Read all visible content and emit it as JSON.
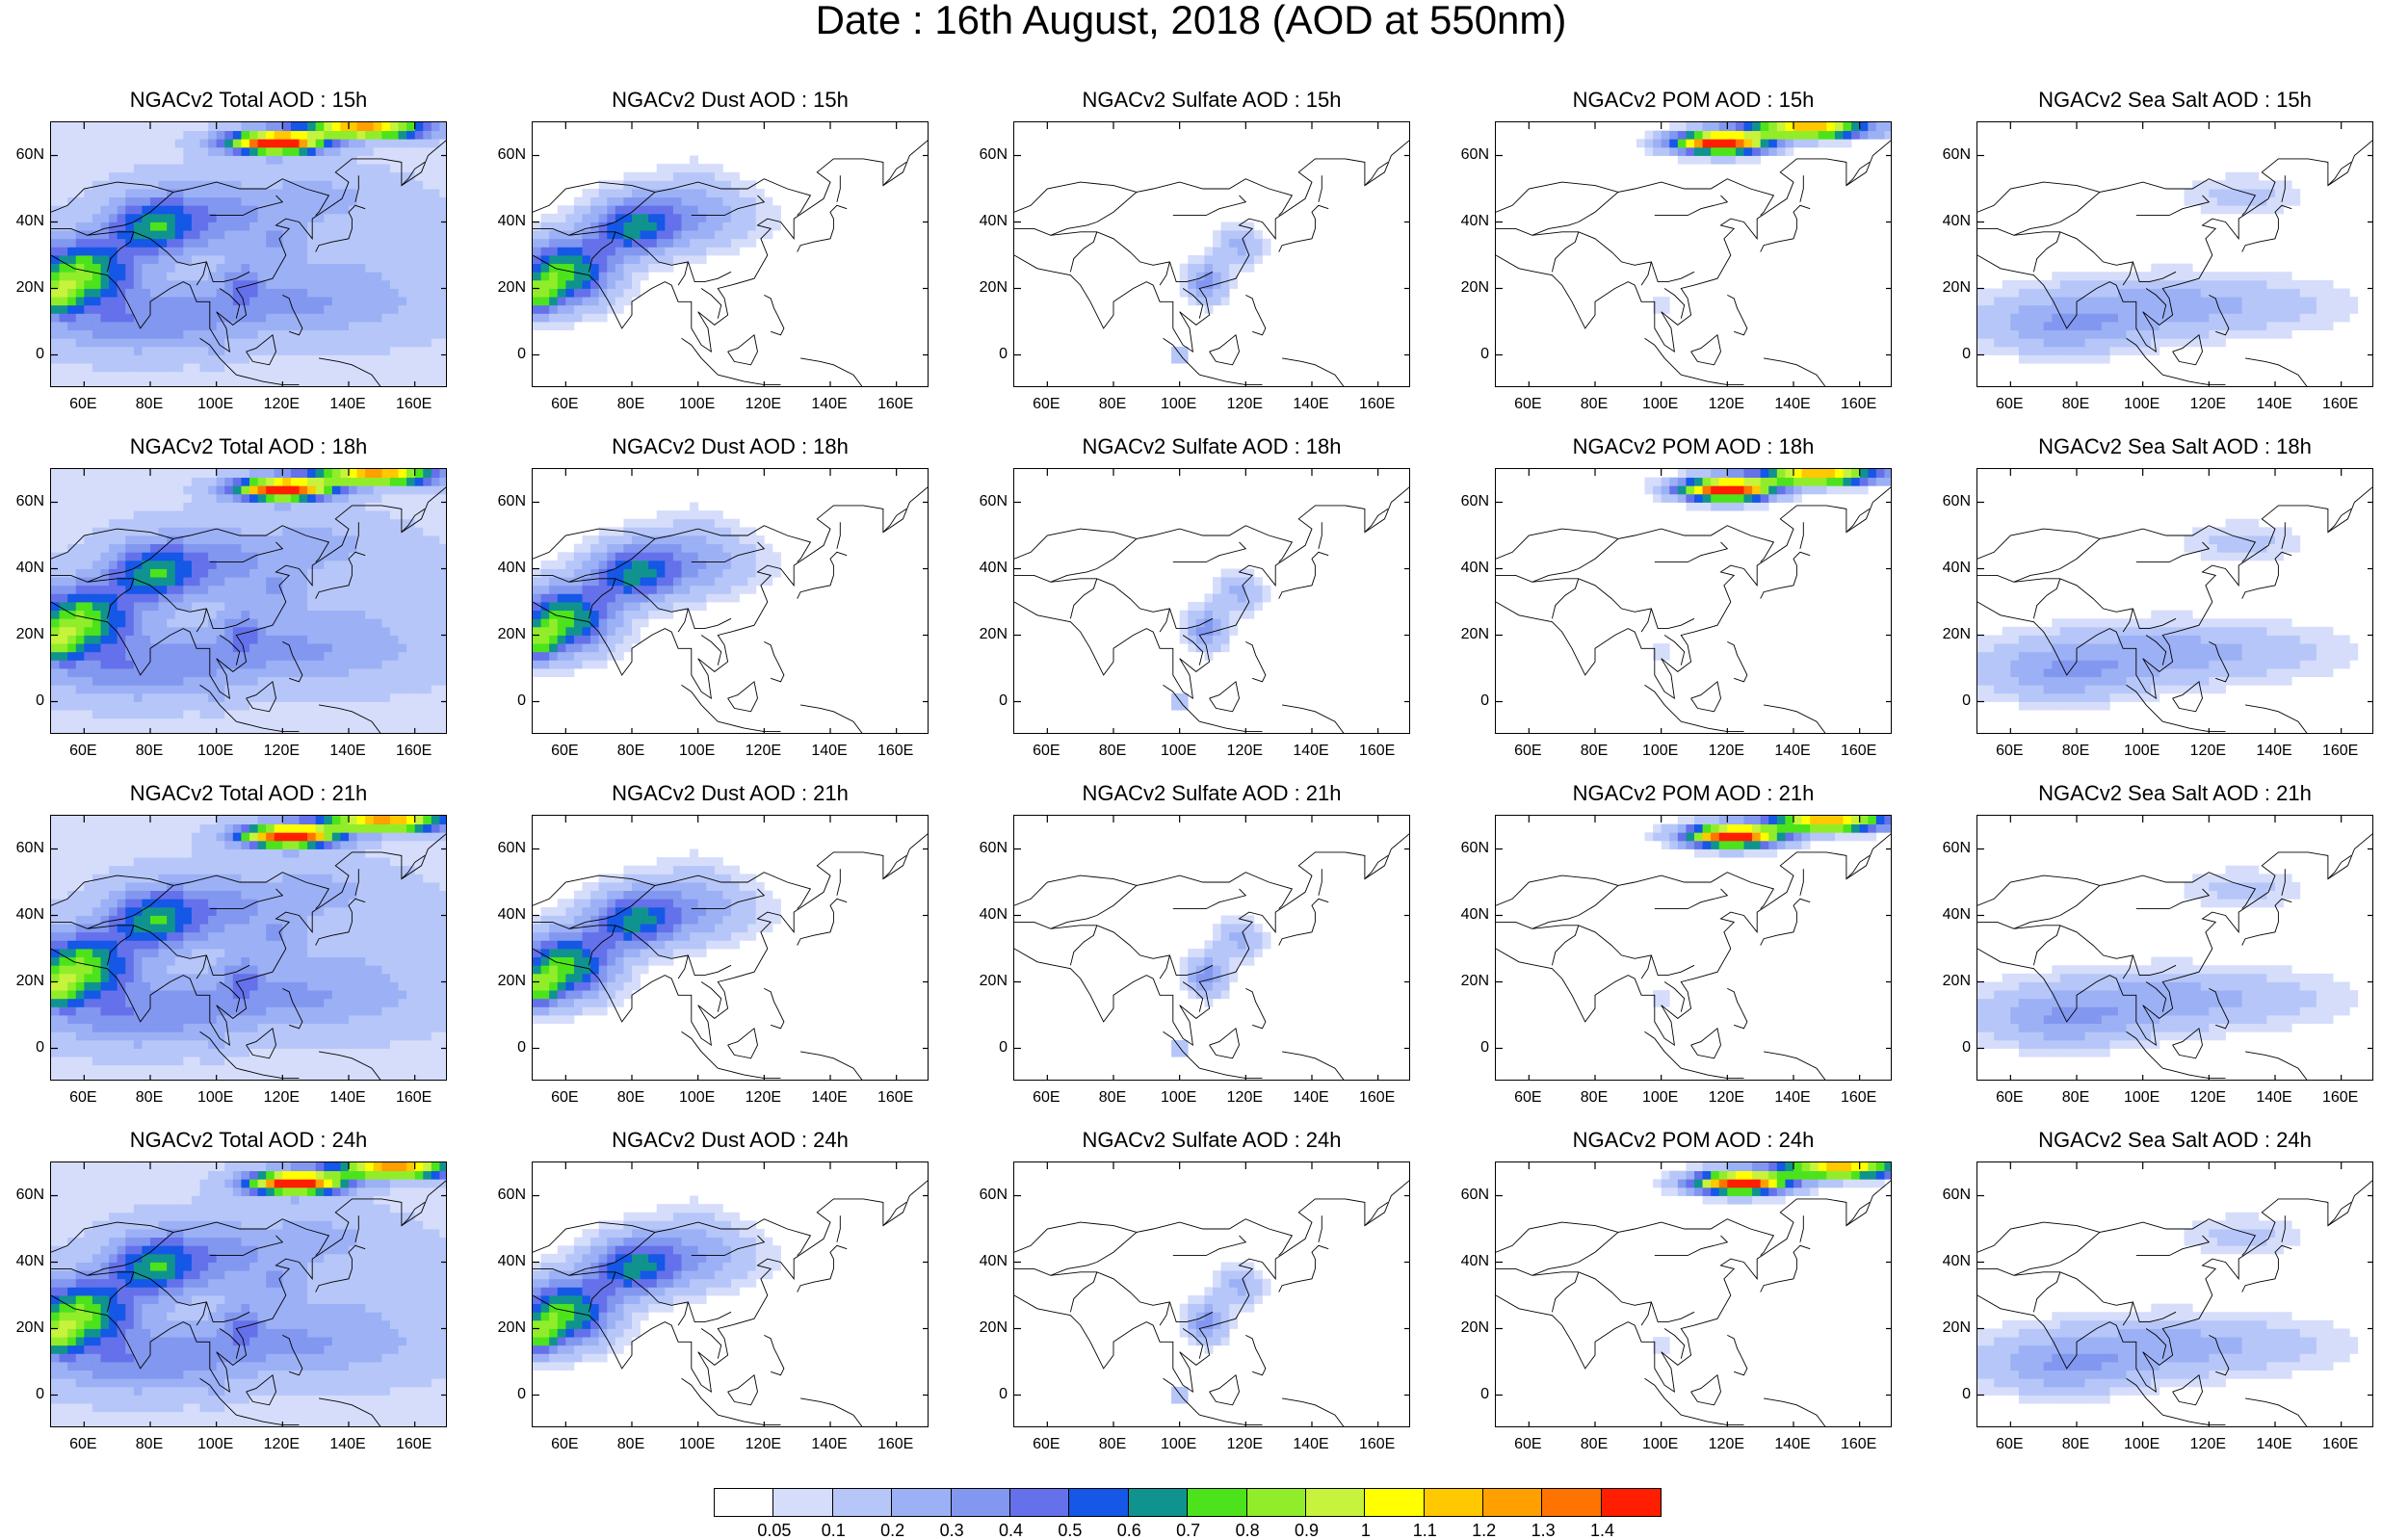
{
  "figure": {
    "title": "Date : 16th August, 2018 (AOD at 550nm)"
  },
  "chart_data": {
    "type": "heatmap",
    "rows": [
      "15h",
      "18h",
      "21h",
      "24h"
    ],
    "columns": [
      "Total",
      "Dust",
      "Sulfate",
      "POM",
      "Sea Salt"
    ],
    "panel_titles": [
      [
        "NGACv2 Total AOD : 15h",
        "NGACv2 Dust AOD : 15h",
        "NGACv2 Sulfate AOD : 15h",
        "NGACv2 POM AOD : 15h",
        "NGACv2 Sea Salt AOD : 15h"
      ],
      [
        "NGACv2 Total AOD : 18h",
        "NGACv2 Dust AOD : 18h",
        "NGACv2 Sulfate AOD : 18h",
        "NGACv2 POM AOD : 18h",
        "NGACv2 Sea Salt AOD : 18h"
      ],
      [
        "NGACv2 Total AOD : 21h",
        "NGACv2 Dust AOD : 21h",
        "NGACv2 Sulfate AOD : 21h",
        "NGACv2 POM AOD : 21h",
        "NGACv2 Sea Salt AOD : 21h"
      ],
      [
        "NGACv2 Total AOD : 24h",
        "NGACv2 Dust AOD : 24h",
        "NGACv2 Sulfate AOD : 24h",
        "NGACv2 POM AOD : 24h",
        "NGACv2 Sea Salt  AOD : 24h"
      ]
    ],
    "xlim": [
      50,
      170
    ],
    "ylim": [
      -10,
      70
    ],
    "x_ticks": [
      60,
      80,
      100,
      120,
      140,
      160
    ],
    "x_tick_labels": [
      "60E",
      "80E",
      "100E",
      "120E",
      "140E",
      "160E"
    ],
    "y_ticks": [
      0,
      20,
      40,
      60
    ],
    "y_tick_labels": [
      "0",
      "20N",
      "40N",
      "60N"
    ],
    "colorbar": {
      "levels": [
        "0.05",
        "0.1",
        "0.2",
        "0.3",
        "0.4",
        "0.5",
        "0.6",
        "0.7",
        "0.8",
        "0.9",
        "1",
        "1.1",
        "1.2",
        "1.3",
        "1.4"
      ],
      "colors": [
        "#ffffff",
        "#d5ddfb",
        "#b6c6f8",
        "#9cb0f5",
        "#8297ef",
        "#6471ea",
        "#1557e6",
        "#10938f",
        "#4ce31c",
        "#91ed2a",
        "#c7f33c",
        "#ffff00",
        "#ffc800",
        "#ffa000",
        "#ff7300",
        "#ff1e00"
      ]
    }
  }
}
